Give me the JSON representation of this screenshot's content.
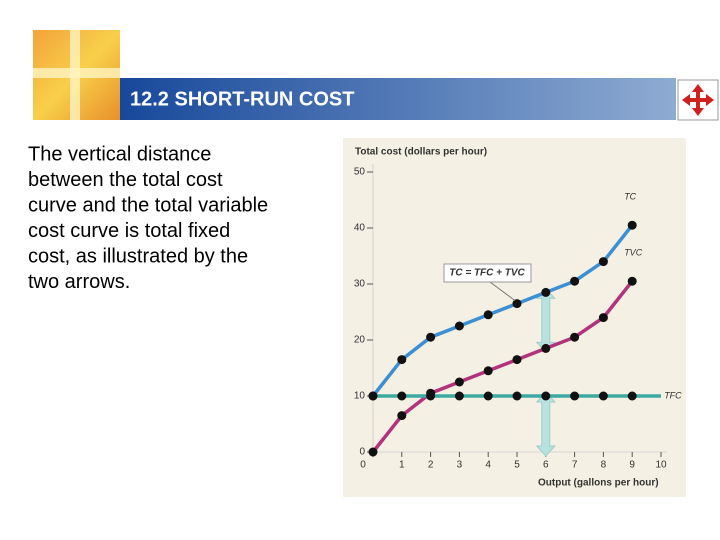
{
  "slide": {
    "title": "12.2 SHORT-RUN COST",
    "body": [
      "The vertical distance",
      "between the total cost",
      "curve and the total variable",
      "cost curve is total fixed",
      "cost, as illustrated by the",
      "two arrows."
    ]
  },
  "chart_data": {
    "type": "line",
    "ylabel": "Total cost (dollars per hour)",
    "xlabel": "Output (gallons per hour)",
    "annotation": "TC = TFC + TVC",
    "x": [
      0,
      1,
      2,
      3,
      4,
      5,
      6,
      7,
      8,
      9
    ],
    "series": [
      {
        "name": "TC",
        "color": "#3b8fd2",
        "values": [
          10,
          16.5,
          20.5,
          22.5,
          24.5,
          26.5,
          28.5,
          30.5,
          34,
          40.5
        ]
      },
      {
        "name": "TVC",
        "color": "#b3327c",
        "values": [
          0,
          6.5,
          10.5,
          12.5,
          14.5,
          16.5,
          18.5,
          20.5,
          24,
          30.5
        ]
      },
      {
        "name": "TFC",
        "color": "#3aaaa2",
        "values": [
          10,
          10,
          10,
          10,
          10,
          10,
          10,
          10,
          10,
          10
        ]
      }
    ],
    "xlim": [
      0,
      10
    ],
    "xticks": [
      0,
      1,
      2,
      3,
      4,
      5,
      6,
      7,
      8,
      9,
      10
    ],
    "ylim": [
      0,
      50
    ],
    "yticks": [
      0,
      10,
      20,
      30,
      40,
      50
    ]
  }
}
